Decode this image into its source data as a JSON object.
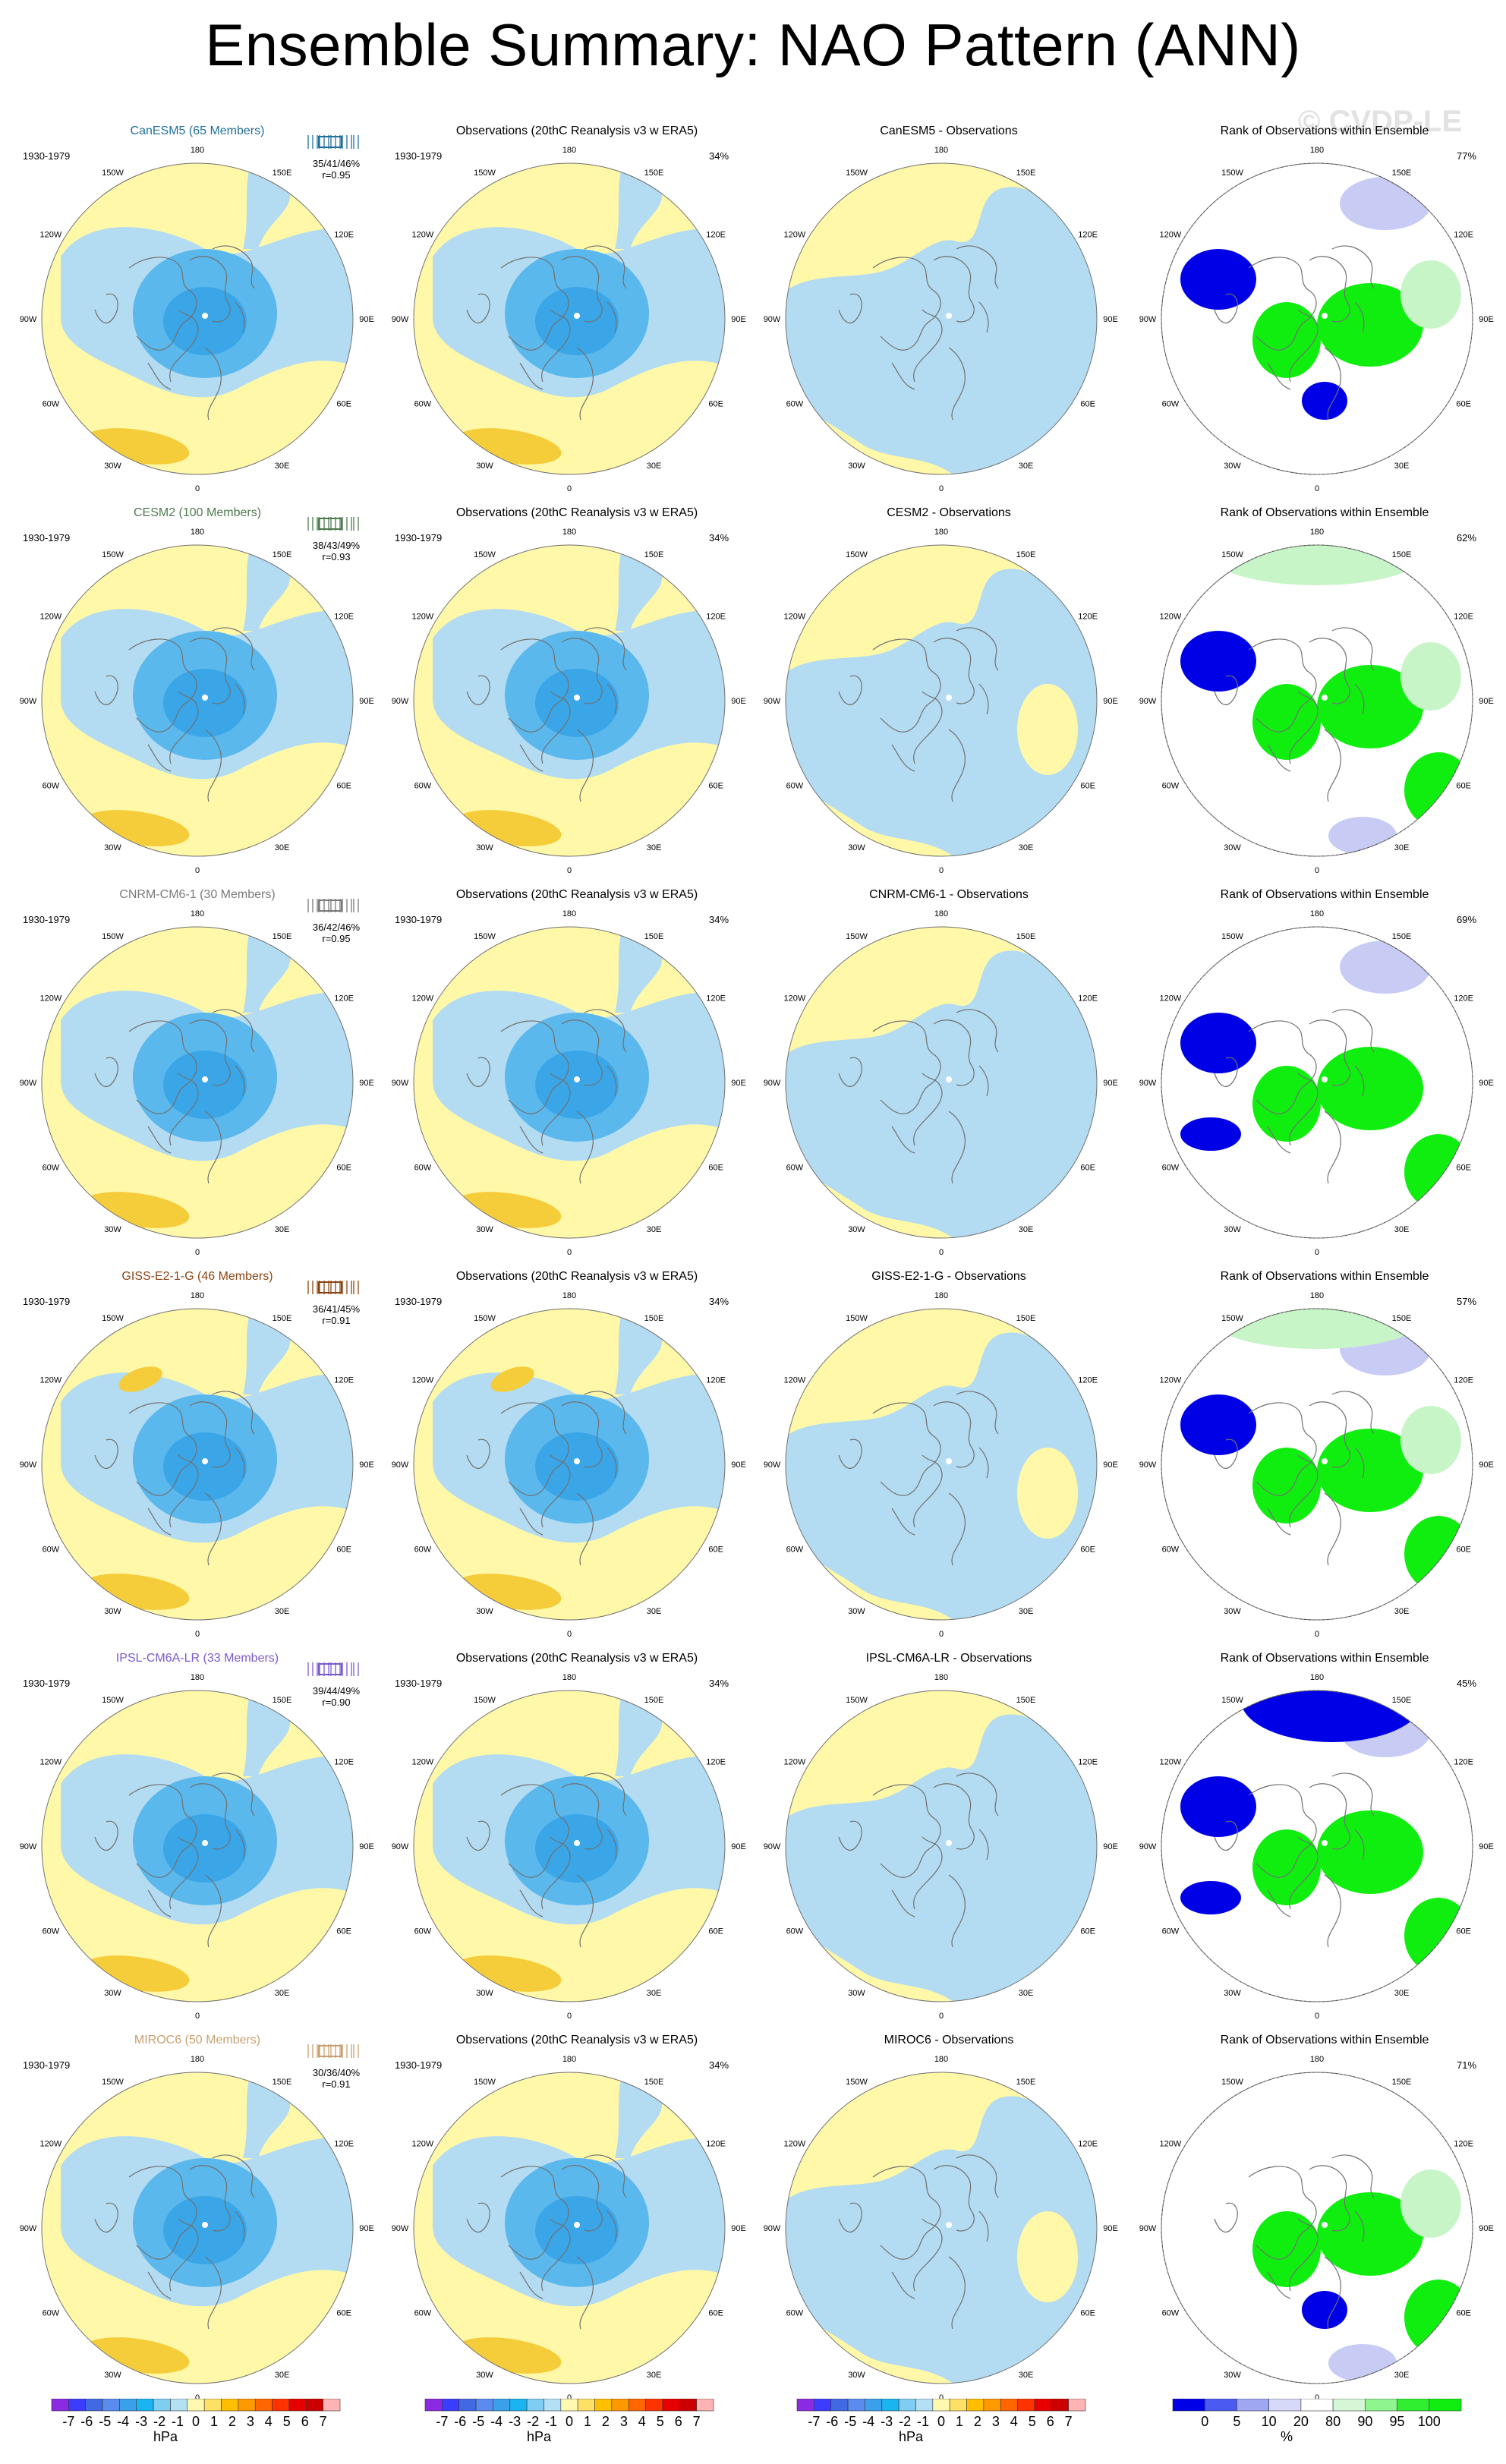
{
  "title": "Ensemble Summary: NAO Pattern (ANN)",
  "watermark": "© CVDP-LE",
  "obs_title": "Observations (20thC Reanalysis v3 w ERA5)",
  "rank_title": "Rank of Observations within Ensemble",
  "period": "1930-1979",
  "obs_pct": "34%",
  "colors": {
    "neg_dark": "#1aa8e6",
    "neg_mid": "#5bb8ec",
    "neg_light": "#b3dcf2",
    "pos_light": "#fff8a8",
    "pos_mid": "#f5cc3a",
    "rank_blue": "#0000e6",
    "rank_blue_light": "#c8ccf5",
    "rank_green": "#10ee10",
    "rank_green_light": "#c8f5c8",
    "coast": "#707070"
  },
  "lon_labels": [
    "180",
    "150E",
    "120E",
    "90E",
    "60E",
    "30E",
    "0",
    "30W",
    "60W",
    "90W",
    "120W",
    "150W"
  ],
  "chart_data": {
    "type": "heatmap",
    "title": "Ensemble Summary: NAO Pattern (ANN)",
    "projection": "polar stereographic, Northern Hemisphere",
    "rows": [
      {
        "model": "CanESM5",
        "members": "CanESM5 (65 Members)",
        "color": "#1f6f9c",
        "stats": "35/41/46%",
        "r": "r=0.95",
        "diff_title": "CanESM5 - Observations",
        "rank_pct": "77%"
      },
      {
        "model": "CESM2",
        "members": "CESM2 (100 Members)",
        "color": "#4f7a4f",
        "stats": "38/43/49%",
        "r": "r=0.93",
        "diff_title": "CESM2 - Observations",
        "rank_pct": "62%"
      },
      {
        "model": "CNRM-CM6-1",
        "members": "CNRM-CM6-1 (30 Members)",
        "color": "#7a7a7a",
        "stats": "36/42/46%",
        "r": "r=0.95",
        "diff_title": "CNRM-CM6-1 - Observations",
        "rank_pct": "69%"
      },
      {
        "model": "GISS-E2-1-G",
        "members": "GISS-E2-1-G (46 Members)",
        "color": "#8b4513",
        "stats": "36/41/45%",
        "r": "r=0.91",
        "diff_title": "GISS-E2-1-G - Observations",
        "rank_pct": "57%"
      },
      {
        "model": "IPSL-CM6A-LR",
        "members": "IPSL-CM6A-LR (33 Members)",
        "color": "#7b5acf",
        "stats": "39/44/49%",
        "r": "r=0.90",
        "diff_title": "IPSL-CM6A-LR - Observations",
        "rank_pct": "45%"
      },
      {
        "model": "MIROC6",
        "members": "MIROC6 (50 Members)",
        "color": "#c8a070",
        "stats": "30/36/40%",
        "r": "r=0.91",
        "diff_title": "MIROC6 - Observations",
        "rank_pct": "71%"
      }
    ],
    "hpa_colorbar": {
      "unit": "hPa",
      "labels": [
        "-7",
        "-6",
        "-5",
        "-4",
        "-3",
        "-2",
        "-1",
        "0",
        "1",
        "2",
        "3",
        "4",
        "5",
        "6",
        "7"
      ],
      "colors": [
        "#8a2be2",
        "#3c3cff",
        "#4169e1",
        "#5a8cf0",
        "#3aa0ea",
        "#1ab4f0",
        "#7fcdf0",
        "#b3e0f5",
        "#fff9b0",
        "#ffe066",
        "#ffbf00",
        "#ff9900",
        "#ff6600",
        "#ff3300",
        "#e60000",
        "#cc0000",
        "#ffb3b3"
      ]
    },
    "rank_colorbar": {
      "unit": "%",
      "labels": [
        "0",
        "5",
        "10",
        "20",
        "80",
        "90",
        "95",
        "100"
      ],
      "colors": [
        "#0000e6",
        "#4b5af0",
        "#9fa6f2",
        "#d6d9f7",
        "#ffffff",
        "#d6f7d6",
        "#8ff58f",
        "#30ee30",
        "#10ee10"
      ]
    }
  }
}
